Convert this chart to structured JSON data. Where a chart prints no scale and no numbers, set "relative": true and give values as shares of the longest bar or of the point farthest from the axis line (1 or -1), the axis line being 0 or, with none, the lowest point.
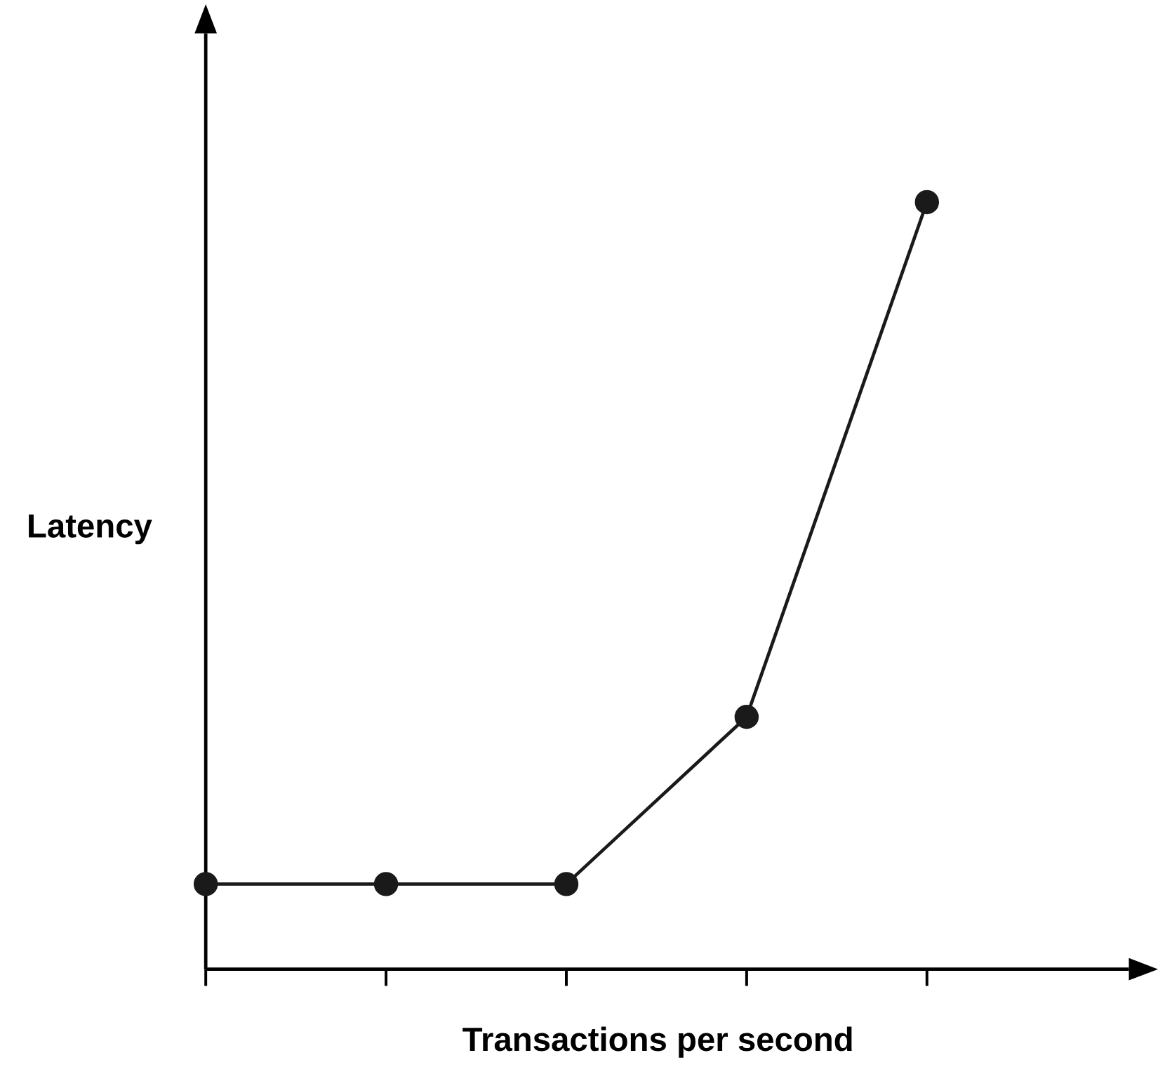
{
  "chart_data": {
    "type": "line",
    "xlabel": "Transactions per second",
    "ylabel": "Latency",
    "relative": true,
    "marker": "circle",
    "categories": [
      null,
      null,
      null,
      null,
      null
    ],
    "series": [
      {
        "color": "#1a1a1a",
        "values": [
          0.111,
          0.111,
          0.111,
          0.329,
          1
        ]
      }
    ]
  }
}
